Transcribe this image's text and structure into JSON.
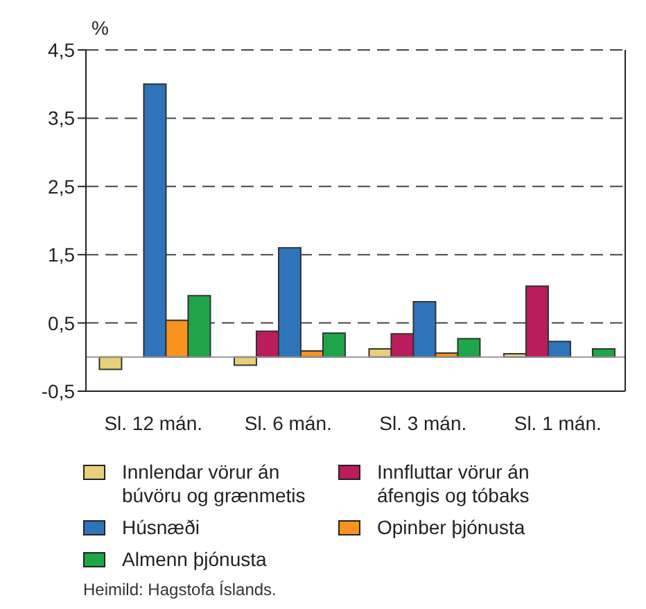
{
  "chart_data": {
    "type": "bar",
    "ylabel": "%",
    "categories": [
      "Sl. 12 mán.",
      "Sl. 6 mán.",
      "Sl. 3 mán.",
      "Sl. 1 mán."
    ],
    "series": [
      {
        "name": "Innlendar vörur án búvöru og grænmetis",
        "color": "#e8d07a",
        "values": [
          -0.18,
          -0.12,
          0.12,
          0.05
        ]
      },
      {
        "name": "Innfluttar vörur án áfengis og tóbaks",
        "color": "#bb1c5c",
        "values": [
          null,
          0.38,
          0.34,
          1.04
        ]
      },
      {
        "name": "Húsnæði",
        "color": "#2f74bb",
        "values": [
          4.0,
          1.6,
          0.81,
          0.23
        ]
      },
      {
        "name": "Opinber þjónusta",
        "color": "#f7931e",
        "values": [
          0.54,
          0.09,
          0.06,
          null
        ]
      },
      {
        "name": "Almenn þjónusta",
        "color": "#1fa64a",
        "values": [
          0.9,
          0.35,
          0.27,
          0.12
        ]
      }
    ],
    "ylim": [
      -0.5,
      4.5
    ],
    "yticks": [
      {
        "value": -0.5,
        "label": "-0,5"
      },
      {
        "value": 0.5,
        "label": "0,5"
      },
      {
        "value": 1.5,
        "label": "1,5"
      },
      {
        "value": 2.5,
        "label": "2,5"
      },
      {
        "value": 3.5,
        "label": "3,5"
      },
      {
        "value": 4.5,
        "label": "4,5"
      }
    ],
    "grid": "y",
    "legend": "bottom",
    "ref_lines": [
      {
        "axis": "y",
        "value": 0,
        "color": "#999999"
      }
    ],
    "annotations": [
      "Heimild: Hagstofa Íslands."
    ]
  }
}
